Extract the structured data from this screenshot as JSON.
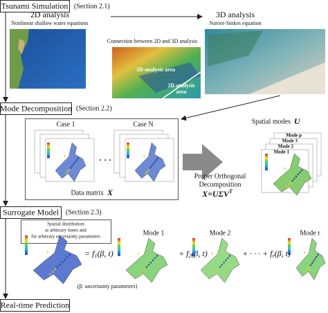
{
  "stages": [
    {
      "title": "Tsunami Simulation",
      "section": "(Section 2.1)"
    },
    {
      "title": "Mode Decomposition",
      "section": "(Section 2.2)"
    },
    {
      "title": "Surrogate Model",
      "section": "(Section 2.3)"
    },
    {
      "title": "Real-time Prediction"
    }
  ],
  "simulation": {
    "analysis_2d": {
      "title": "2D analysis",
      "subtitle": "Nonlinear shallow water equations"
    },
    "analysis_3d": {
      "title": "3D analysis",
      "subtitle": "Navier-Stokes equation"
    },
    "connection": {
      "title": "Connection between 2D and 3D analysis",
      "area_3d": "3D analysis area",
      "area_2d": [
        "2D analysis",
        "area"
      ]
    }
  },
  "decomposition": {
    "cases": [
      "Case 1",
      "Case N"
    ],
    "ellipsis": "· · ·",
    "data_matrix": "Data matrix",
    "matrix_symbol": "X",
    "pod": [
      "Proper Orthogonal",
      "Decomposition"
    ],
    "formula": "X=UΣV",
    "formula_sup": "T",
    "spatial_modes": "Spatial modes",
    "modes_symbol": "U",
    "modes": [
      "Mode p",
      "Mode 3",
      "Mode 2",
      "Mode 1"
    ]
  },
  "surrogate": {
    "note": [
      "Spatial distribution",
      "at arbitrary times and",
      "for arbitrary uncertainty parameters"
    ],
    "terms": [
      {
        "prefix": "= f",
        "sub": "1",
        "suffix": "(β, t)"
      },
      {
        "prefix": "+ f",
        "sub": "2",
        "suffix": "(β, t)"
      },
      {
        "prefix": "+ · · · + f",
        "sub": "r",
        "suffix": "(β, t)"
      }
    ],
    "modes": [
      "Mode 1",
      "Mode 2",
      "Mode r"
    ],
    "footnote": "(β: uncertainty parameters)"
  }
}
